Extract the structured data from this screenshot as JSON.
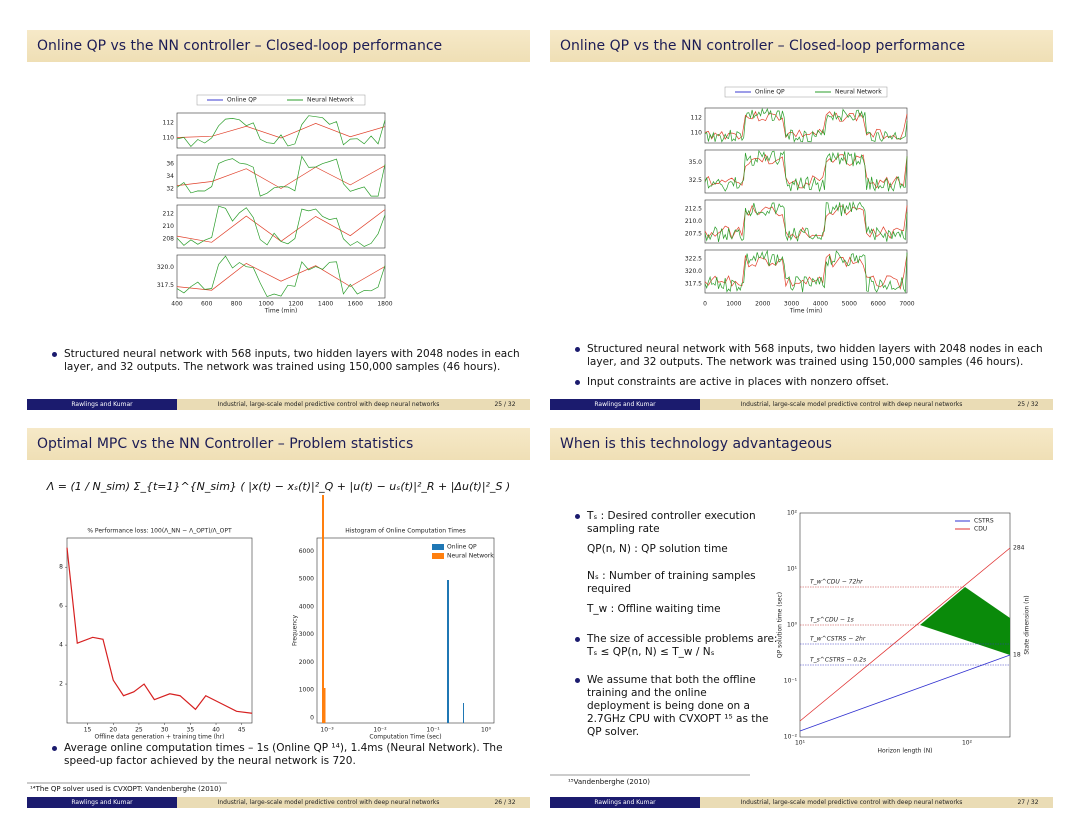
{
  "slides": [
    {
      "title": "Online QP vs the NN controller – Closed-loop performance",
      "bullets": [
        "Structured neural network with 568 inputs, two hidden layers with 2048 nodes in each layer, and 32 outputs. The network was trained using 150,000 samples (46 hours)."
      ],
      "figure": {
        "legend": [
          "Online QP",
          "Neural Network"
        ],
        "panels": [
          [
            "112",
            "110"
          ],
          [
            "36",
            "34",
            "32"
          ],
          [
            "212",
            "210",
            "208"
          ],
          [
            "320.0",
            "317.5"
          ]
        ],
        "xticks": [
          "400",
          "600",
          "800",
          "1000",
          "1200",
          "1400",
          "1600",
          "1800"
        ],
        "xlabel": "Time (min)"
      },
      "footer": {
        "author": "Rawlings and Kumar",
        "talk": "Industrial, large-scale model predictive control with deep neural networks",
        "page": "25 / 32"
      }
    },
    {
      "title": "Online QP vs the NN controller – Closed-loop performance",
      "bullets": [
        "Structured neural network with 568 inputs, two hidden layers with 2048 nodes in each layer, and 32 outputs. The network was trained using 150,000 samples (46 hours).",
        "Input constraints are active in places with nonzero offset."
      ],
      "figure": {
        "legend": [
          "Online QP",
          "Neural Network"
        ],
        "panels": [
          [
            "112",
            "110"
          ],
          [
            "35.0",
            "32.5"
          ],
          [
            "212.5",
            "210.0",
            "207.5"
          ],
          [
            "322.5",
            "320.0",
            "317.5"
          ]
        ],
        "xticks": [
          "0",
          "1000",
          "2000",
          "3000",
          "4000",
          "5000",
          "6000",
          "7000"
        ],
        "xlabel": "Time (min)"
      },
      "footer": {
        "author": "Rawlings and Kumar",
        "talk": "Industrial, large-scale model predictive control with deep neural networks",
        "page": "25 / 32"
      }
    },
    {
      "title": "Optimal MPC vs the NN Controller – Problem statistics",
      "equation": "Λ = (1 / N_sim) Σ_{t=1}^{N_sim} ( |x(t) − xₛ(t)|²_Q + |u(t) − uₛ(t)|²_R + |Δu(t)|²_S )",
      "loss_plot": {
        "title": "% Performance loss: 100(Λ_NN − Λ_OPT)/Λ_OPT",
        "x": [
          11,
          13,
          16,
          18,
          20,
          22,
          24,
          26,
          28,
          31,
          33,
          36,
          38,
          41,
          44,
          47
        ],
        "values": [
          9,
          4.1,
          4.4,
          4.3,
          2.2,
          1.4,
          1.6,
          2.0,
          1.2,
          1.5,
          1.4,
          0.7,
          1.4,
          1.0,
          0.6,
          0.5
        ],
        "xlim": [
          11,
          47
        ],
        "ylim": [
          0,
          9.5
        ],
        "xticks": [
          15,
          20,
          25,
          30,
          35,
          40,
          45
        ],
        "yticks": [
          2,
          4,
          6,
          8
        ],
        "xlabel": "Offline data generation + training time (hr)"
      },
      "histogram": {
        "title": "Histogram of Online Computation Times",
        "legend": [
          "Online QP",
          "Neural Network"
        ],
        "yticks": [
          0,
          1000,
          2000,
          3000,
          4000,
          5000,
          6000
        ],
        "xticks": [
          "10⁻³",
          "10⁻²",
          "10⁻¹",
          "10⁰"
        ],
        "ylabel": "Frequency",
        "xlabel": "Computation Time (sec)"
      },
      "bullets": [
        "Average online computation times – 1s (Online QP ¹⁴), 1.4ms (Neural Network). The speed-up factor achieved by the neural network is 720."
      ],
      "footnote": "¹⁴The QP solver used is CVXOPT: Vandenberghe (2010)",
      "footer": {
        "author": "Rawlings and Kumar",
        "talk": "Industrial, large-scale model predictive control with deep neural networks",
        "page": "26 / 32"
      }
    },
    {
      "title": "When is this technology advantageous",
      "bullets": [
        "Tₛ : Desired controller execution sampling rate",
        "The size of accessible problems are:  Tₛ ≤ QP(n, N) ≤ T_w / Nₛ",
        "We assume that both the offline training and the online deployment is being done on a 2.7GHz CPU with CVXOPT ¹⁵ as the QP solver."
      ],
      "definitions": [
        "QP(n, N) : QP solution time",
        "Nₛ : Number of training samples required",
        "T_w : Offline waiting time"
      ],
      "figure": {
        "legend": [
          "CSTRS",
          "CDU"
        ],
        "yticks": [
          "10⁻²",
          "10⁻¹",
          "10⁰",
          "10¹",
          "10²"
        ],
        "xticks": [
          "10¹",
          "10²"
        ],
        "right_ticks": [
          "284",
          "18"
        ],
        "lines": [
          "T_w^CDU − 72hr",
          "T_s^CDU − 1s",
          "T_w^CSTRS − 2hr",
          "T_s^CSTRS − 0.2s"
        ],
        "ylabel": "QP solution time (sec)",
        "y2label": "State dimension (n)",
        "xlabel": "Horizon length (N)"
      },
      "footnote": "¹⁵Vandenberghe (2010)",
      "footer": {
        "author": "Rawlings and Kumar",
        "talk": "Industrial, large-scale model predictive control with deep neural networks",
        "page": "27 / 32"
      }
    }
  ]
}
